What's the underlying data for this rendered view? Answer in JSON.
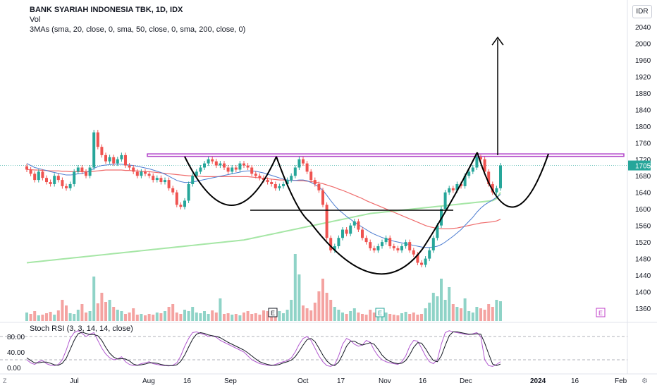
{
  "header": {
    "title": "BANK SYARIAH INDONESIA TBK, 1D, IDX",
    "vol_label": "Vol",
    "ma_label": "3MAs (sma, 20, close, 0, sma, 50, close, 0, sma, 200, close, 0)",
    "currency": "IDR",
    "rsi_label": "Stoch RSI (3, 3, 14, 14, close)"
  },
  "price_axis": {
    "ticks": [
      "2040",
      "2000",
      "1960",
      "1920",
      "1880",
      "1840",
      "1800",
      "1760",
      "1720",
      "1680",
      "1640",
      "1600",
      "1560",
      "1520",
      "1480",
      "1440",
      "1400",
      "1360"
    ],
    "last_price": "1705"
  },
  "rsi_axis": {
    "ticks": [
      "80.00",
      "40.00",
      "0.00"
    ]
  },
  "time_axis": {
    "ticks": [
      "Jul",
      "Aug",
      "16",
      "Sep",
      "Oct",
      "17",
      "Nov",
      "16",
      "Dec",
      "2024",
      "16",
      "Feb"
    ]
  },
  "events": [
    "E",
    "E",
    "E"
  ],
  "colors": {
    "up": "#26a69a",
    "down": "#ef5350",
    "vol_up": "#8fd3c7",
    "vol_down": "#f4a3a1",
    "ma20": "#4a7bd0",
    "ma50": "#ef6c6c",
    "ma200": "#a5e6a5",
    "resistance": "#b040c8",
    "rsi_k": "#b25ad0",
    "rsi_d": "#131722"
  },
  "chart_data": {
    "type": "candlestick",
    "ohlc_close": [
      1695,
      1685,
      1670,
      1690,
      1675,
      1665,
      1660,
      1680,
      1670,
      1655,
      1650,
      1660,
      1690,
      1700,
      1690,
      1680,
      1700,
      1785,
      1750,
      1730,
      1715,
      1725,
      1710,
      1720,
      1730,
      1705,
      1700,
      1690,
      1680,
      1690,
      1685,
      1680,
      1670,
      1675,
      1665,
      1670,
      1650,
      1640,
      1610,
      1605,
      1620,
      1660,
      1680,
      1690,
      1700,
      1710,
      1720,
      1715,
      1705,
      1710,
      1700,
      1690,
      1700,
      1695,
      1710,
      1705,
      1700,
      1685,
      1680,
      1675,
      1670,
      1665,
      1660,
      1650,
      1655,
      1660,
      1670,
      1680,
      1700,
      1720,
      1710,
      1690,
      1670,
      1660,
      1645,
      1610,
      1530,
      1500,
      1510,
      1530,
      1550,
      1540,
      1560,
      1570,
      1550,
      1530,
      1520,
      1505,
      1500,
      1510,
      1520,
      1530,
      1510,
      1505,
      1500,
      1510,
      1520,
      1500,
      1490,
      1470,
      1465,
      1480,
      1500,
      1530,
      1560,
      1600,
      1640,
      1650,
      1645,
      1660,
      1655,
      1680,
      1690,
      1700,
      1725,
      1720,
      1690,
      1660,
      1640,
      1650,
      1705
    ],
    "volume": [
      12,
      10,
      14,
      8,
      9,
      11,
      13,
      9,
      15,
      30,
      22,
      11,
      10,
      16,
      24,
      12,
      14,
      63,
      25,
      40,
      27,
      30,
      20,
      16,
      14,
      10,
      12,
      18,
      9,
      10,
      8,
      10,
      9,
      12,
      11,
      14,
      20,
      24,
      12,
      10,
      16,
      14,
      20,
      12,
      11,
      14,
      10,
      15,
      12,
      32,
      10,
      11,
      9,
      10,
      8,
      12,
      14,
      10,
      11,
      9,
      15,
      14,
      12,
      10,
      14,
      11,
      16,
      30,
      95,
      66,
      22,
      18,
      15,
      26,
      42,
      60,
      40,
      30,
      20,
      16,
      12,
      10,
      14,
      18,
      12,
      10,
      9,
      16,
      12,
      10,
      14,
      12,
      10,
      9,
      8,
      11,
      13,
      10,
      12,
      9,
      10,
      18,
      26,
      40,
      35,
      60,
      30,
      48,
      24,
      20,
      18,
      32,
      14,
      12,
      20,
      18,
      16,
      24,
      20,
      30,
      28
    ],
    "ma20": [
      1710,
      1705,
      1700,
      1698,
      1695,
      1693,
      1690,
      1688,
      1686,
      1684,
      1682,
      1682,
      1683,
      1685,
      1686,
      1688,
      1692,
      1698,
      1702,
      1705,
      1706,
      1707,
      1708,
      1708,
      1708,
      1707,
      1706,
      1705,
      1703,
      1701,
      1699,
      1697,
      1694,
      1691,
      1688,
      1684,
      1679,
      1674,
      1669,
      1666,
      1664,
      1664,
      1665,
      1667,
      1669,
      1671,
      1673,
      1675,
      1677,
      1679,
      1681,
      1683,
      1685,
      1687,
      1689,
      1691,
      1692,
      1692,
      1691,
      1689,
      1687,
      1684,
      1681,
      1678,
      1675,
      1672,
      1670,
      1669,
      1669,
      1670,
      1670,
      1668,
      1664,
      1659,
      1653,
      1645,
      1633,
      1620,
      1608,
      1598,
      1590,
      1582,
      1575,
      1568,
      1562,
      1556,
      1550,
      1544,
      1539,
      1535,
      1531,
      1528,
      1525,
      1522,
      1520,
      1518,
      1516,
      1514,
      1512,
      1510,
      1508,
      1507,
      1507,
      1508,
      1510,
      1514,
      1520,
      1527,
      1534,
      1542,
      1550,
      1560,
      1570,
      1580,
      1592,
      1602,
      1610,
      1616,
      1622,
      1628,
      1635
    ],
    "ma50": [
      1695,
      1695,
      1694,
      1694,
      1693,
      1693,
      1692,
      1692,
      1692,
      1691,
      1691,
      1690,
      1690,
      1690,
      1690,
      1690,
      1690,
      1691,
      1692,
      1693,
      1694,
      1694,
      1694,
      1694,
      1694,
      1693,
      1693,
      1692,
      1692,
      1691,
      1690,
      1690,
      1689,
      1688,
      1687,
      1686,
      1685,
      1684,
      1683,
      1682,
      1681,
      1680,
      1680,
      1679,
      1679,
      1678,
      1678,
      1678,
      1678,
      1678,
      1678,
      1678,
      1678,
      1678,
      1678,
      1678,
      1678,
      1677,
      1676,
      1675,
      1674,
      1673,
      1672,
      1671,
      1670,
      1670,
      1669,
      1669,
      1669,
      1668,
      1668,
      1667,
      1666,
      1665,
      1663,
      1661,
      1658,
      1655,
      1652,
      1648,
      1645,
      1641,
      1637,
      1633,
      1629,
      1625,
      1620,
      1616,
      1612,
      1608,
      1604,
      1600,
      1596,
      1592,
      1588,
      1584,
      1580,
      1576,
      1572,
      1568,
      1564,
      1560,
      1557,
      1555,
      1553,
      1552,
      1552,
      1552,
      1553,
      1554,
      1556,
      1558,
      1560,
      1562,
      1564,
      1566,
      1567,
      1568,
      1569,
      1571,
      1575
    ],
    "ma200": [
      1470,
      1471,
      1472,
      1473,
      1474,
      1475,
      1476,
      1477,
      1478,
      1479,
      1480,
      1481,
      1482,
      1483,
      1484,
      1485,
      1486,
      1487,
      1488,
      1489,
      1490,
      1491,
      1492,
      1493,
      1494,
      1495,
      1496,
      1497,
      1498,
      1499,
      1500,
      1501,
      1502,
      1503,
      1504,
      1505,
      1506,
      1507,
      1508,
      1509,
      1510,
      1511,
      1512,
      1513,
      1514,
      1515,
      1516,
      1517,
      1518,
      1519,
      1520,
      1521,
      1522,
      1523,
      1524,
      1525,
      1527,
      1529,
      1531,
      1533,
      1535,
      1537,
      1539,
      1541,
      1543,
      1545,
      1547,
      1549,
      1551,
      1553,
      1555,
      1557,
      1559,
      1561,
      1563,
      1565,
      1567,
      1569,
      1571,
      1573,
      1575,
      1577,
      1579,
      1581,
      1583,
      1585,
      1587,
      1589,
      1590,
      1591,
      1592,
      1593,
      1594,
      1595,
      1596,
      1597,
      1598,
      1599,
      1600,
      1601,
      1602,
      1603,
      1604,
      1605,
      1606,
      1607,
      1608,
      1609,
      1610,
      1611,
      1612,
      1613,
      1614,
      1615,
      1616,
      1617,
      1618,
      1619,
      1620,
      1625,
      1640
    ],
    "stoch_k": [
      20,
      12,
      8,
      15,
      18,
      10,
      6,
      5,
      8,
      20,
      45,
      75,
      90,
      95,
      88,
      80,
      86,
      90,
      70,
      50,
      35,
      25,
      20,
      22,
      28,
      15,
      8,
      5,
      6,
      10,
      12,
      15,
      10,
      8,
      6,
      5,
      4,
      6,
      12,
      30,
      55,
      75,
      90,
      92,
      88,
      85,
      80,
      82,
      78,
      70,
      65,
      60,
      55,
      50,
      45,
      40,
      30,
      20,
      15,
      10,
      8,
      6,
      5,
      8,
      12,
      15,
      18,
      25,
      40,
      60,
      75,
      80,
      70,
      50,
      30,
      15,
      5,
      3,
      8,
      30,
      60,
      75,
      70,
      60,
      55,
      58,
      70,
      65,
      45,
      30,
      20,
      15,
      12,
      10,
      8,
      15,
      30,
      55,
      70,
      68,
      50,
      30,
      15,
      10,
      20,
      60,
      90,
      95,
      92,
      90,
      88,
      86,
      85,
      87,
      90,
      80,
      20,
      5,
      3,
      8,
      15
    ],
    "stoch_d": [
      25,
      18,
      12,
      12,
      14,
      14,
      11,
      7,
      6,
      11,
      24,
      47,
      70,
      87,
      91,
      88,
      85,
      85,
      82,
      70,
      52,
      37,
      27,
      22,
      23,
      22,
      17,
      9,
      6,
      7,
      9,
      12,
      12,
      11,
      8,
      6,
      5,
      5,
      7,
      16,
      32,
      53,
      73,
      86,
      90,
      88,
      84,
      82,
      80,
      77,
      71,
      65,
      60,
      55,
      50,
      45,
      38,
      30,
      22,
      15,
      11,
      8,
      6,
      6,
      8,
      12,
      15,
      19,
      28,
      42,
      58,
      72,
      75,
      67,
      50,
      32,
      17,
      8,
      5,
      14,
      33,
      55,
      68,
      68,
      62,
      58,
      61,
      64,
      60,
      47,
      32,
      22,
      16,
      12,
      10,
      11,
      18,
      33,
      52,
      64,
      63,
      49,
      32,
      18,
      15,
      30,
      57,
      82,
      92,
      92,
      90,
      88,
      86,
      86,
      87,
      86,
      63,
      35,
      9,
      5,
      9
    ]
  }
}
